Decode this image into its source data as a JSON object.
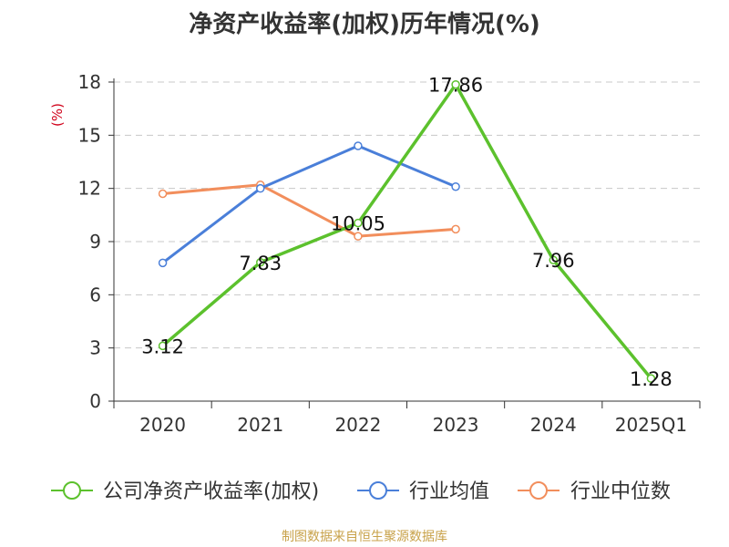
{
  "chart_data": {
    "type": "line",
    "title": "净资产收益率(加权)历年情况(%)",
    "ylabel": "(%)",
    "xlabel": "",
    "categories": [
      "2020",
      "2021",
      "2022",
      "2023",
      "2024",
      "2025Q1"
    ],
    "ylim": [
      0,
      18
    ],
    "yticks": [
      0,
      3,
      6,
      9,
      12,
      15,
      18
    ],
    "grid": true,
    "legend_position": "bottom",
    "series": [
      {
        "name": "公司净资产收益率(加权)",
        "color": "#5cc12d",
        "values": [
          3.12,
          7.83,
          10.05,
          17.86,
          7.96,
          1.28
        ],
        "data_labels": [
          "3.12",
          "7.83",
          "10.05",
          "17.86",
          "7.96",
          "1.28"
        ]
      },
      {
        "name": "行业均值",
        "color": "#4a7fd9",
        "values": [
          7.8,
          12.0,
          14.4,
          12.1,
          null,
          null
        ]
      },
      {
        "name": "行业中位数",
        "color": "#f28e5c",
        "values": [
          11.7,
          12.2,
          9.3,
          9.7,
          null,
          null
        ]
      }
    ]
  },
  "source_note": "制图数据来自恒生聚源数据库"
}
